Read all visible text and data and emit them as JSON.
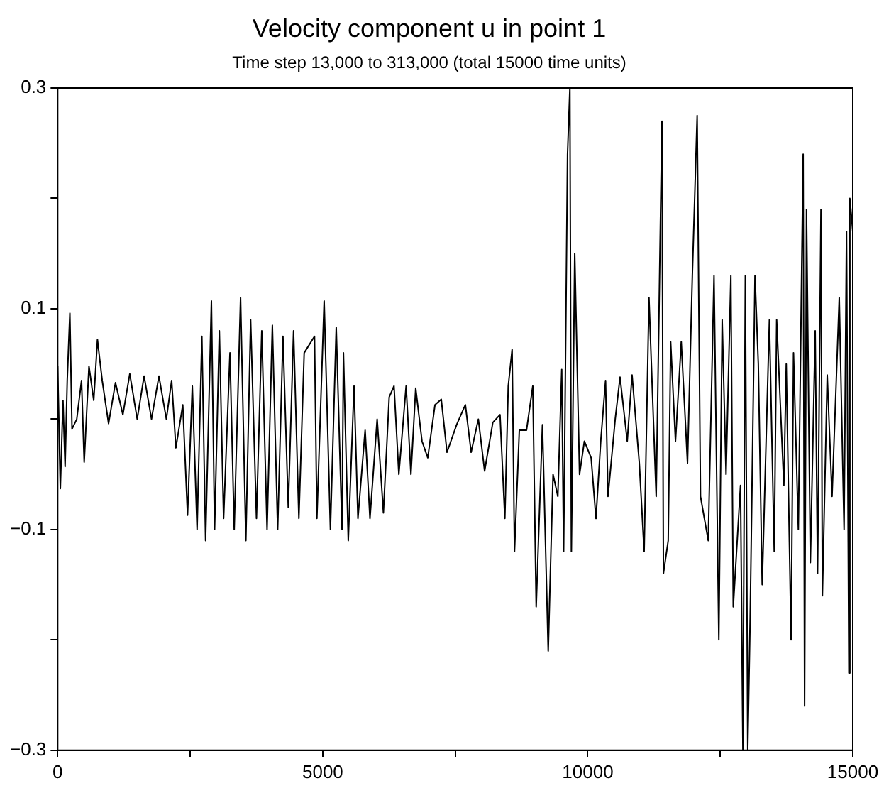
{
  "chart_data": {
    "type": "line",
    "title": "Velocity component u in point 1",
    "subtitle": "Time step 13,000 to 313,000 (total 15000 time units)",
    "xlim": [
      0,
      15000
    ],
    "ylim": [
      -0.3,
      0.3
    ],
    "xticks": [
      0,
      {
        "value": 2500,
        "label": null
      },
      5000,
      {
        "value": 7500,
        "label": null
      },
      10000,
      {
        "value": 12500,
        "label": null
      },
      15000
    ],
    "yticks": [
      {
        "value": -0.3,
        "label": "−0.3"
      },
      {
        "value": -0.2,
        "label": null
      },
      {
        "value": -0.1,
        "label": "−0.1"
      },
      {
        "value": 0,
        "label": null
      },
      0.1,
      {
        "value": 0.2,
        "label": null
      },
      0.3
    ],
    "grid": false,
    "legend": false,
    "marker": "none",
    "line_style": "solid",
    "series": [
      {
        "color": "#000000",
        "x": [
          0,
          50,
          100,
          140,
          180,
          230,
          270,
          360,
          450,
          500,
          590,
          680,
          750,
          840,
          960,
          1090,
          1230,
          1360,
          1500,
          1630,
          1770,
          1910,
          2050,
          2150,
          2230,
          2360,
          2450,
          2540,
          2630,
          2720,
          2790,
          2900,
          2960,
          3050,
          3130,
          3250,
          3330,
          3450,
          3550,
          3640,
          3750,
          3850,
          3950,
          4050,
          4150,
          4250,
          4350,
          4450,
          4550,
          4650,
          4845,
          4890,
          5027,
          5145,
          5255,
          5364,
          5391,
          5482,
          5591,
          5664,
          5800,
          5891,
          6027,
          6145,
          6254,
          6345,
          6436,
          6573,
          6664,
          6754,
          6873,
          6982,
          7118,
          7236,
          7345,
          7527,
          7691,
          7800,
          7936,
          8054,
          8209,
          8345,
          8436,
          8500,
          8573,
          8618,
          8709,
          8845,
          8963,
          9027,
          9145,
          9254,
          9345,
          9436,
          9509,
          9545,
          9618,
          9663,
          9691,
          9754,
          9845,
          9936,
          10064,
          10155,
          10245,
          10336,
          10382,
          10518,
          10609,
          10745,
          10836,
          10973,
          11064,
          11155,
          11291,
          11400,
          11427,
          11518,
          11564,
          11655,
          11764,
          11882,
          11973,
          12064,
          12127,
          12273,
          12382,
          12473,
          12536,
          12609,
          12700,
          12745,
          12882,
          12927,
          12973,
          13018,
          13064,
          13155,
          13218,
          13291,
          13427,
          13518,
          13564,
          13700,
          13745,
          13836,
          13882,
          13973,
          14064,
          14091,
          14127,
          14200,
          14291,
          14336,
          14400,
          14427,
          14518,
          14609,
          14745,
          14836,
          14882,
          14927,
          14945,
          15000
        ],
        "values": [
          0.048,
          -0.063,
          0.017,
          -0.043,
          0.035,
          0.096,
          -0.009,
          0,
          0.035,
          -0.039,
          0.048,
          0.017,
          0.072,
          0.035,
          -0.004,
          0.033,
          0.004,
          0.041,
          0,
          0.039,
          0,
          0.039,
          0,
          0.035,
          -0.026,
          0.013,
          -0.087,
          0.03,
          -0.1,
          0.075,
          -0.11,
          0.107,
          -0.1,
          0.08,
          -0.09,
          0.06,
          -0.1,
          0.11,
          -0.11,
          0.09,
          -0.09,
          0.08,
          -0.1,
          0.085,
          -0.1,
          0.075,
          -0.08,
          0.08,
          -0.09,
          0.06,
          0.075,
          -0.09,
          0.107,
          -0.1,
          0.083,
          -0.1,
          0.06,
          -0.11,
          0.03,
          -0.09,
          -0.01,
          -0.09,
          0,
          -0.085,
          0.02,
          0.03,
          -0.05,
          0.03,
          -0.05,
          0.028,
          -0.02,
          -0.035,
          0.013,
          0.018,
          -0.03,
          -0.005,
          0.013,
          -0.03,
          0,
          -0.047,
          -0.003,
          0.004,
          -0.09,
          0.03,
          0.063,
          -0.12,
          -0.01,
          -0.01,
          0.03,
          -0.17,
          -0.005,
          -0.21,
          -0.05,
          -0.07,
          0.045,
          -0.12,
          0.24,
          0.3,
          -0.12,
          0.15,
          -0.05,
          -0.02,
          -0.035,
          -0.09,
          -0.02,
          0.035,
          -0.07,
          0,
          0.038,
          -0.02,
          0.04,
          -0.04,
          -0.12,
          0.11,
          -0.07,
          0.27,
          -0.14,
          -0.11,
          0.07,
          -0.02,
          0.07,
          -0.04,
          0.13,
          0.275,
          -0.07,
          -0.11,
          0.13,
          -0.2,
          0.09,
          -0.05,
          0.13,
          -0.17,
          -0.06,
          -0.3,
          0.13,
          -0.3,
          -0.18,
          0.13,
          0.05,
          -0.15,
          0.09,
          -0.12,
          0.09,
          -0.06,
          0.05,
          -0.2,
          0.06,
          -0.1,
          0.24,
          -0.26,
          0.19,
          -0.13,
          0.08,
          -0.14,
          0.19,
          -0.16,
          0.04,
          -0.07,
          0.11,
          -0.1,
          0.17,
          -0.23,
          0.2,
          0.17
        ]
      }
    ]
  }
}
